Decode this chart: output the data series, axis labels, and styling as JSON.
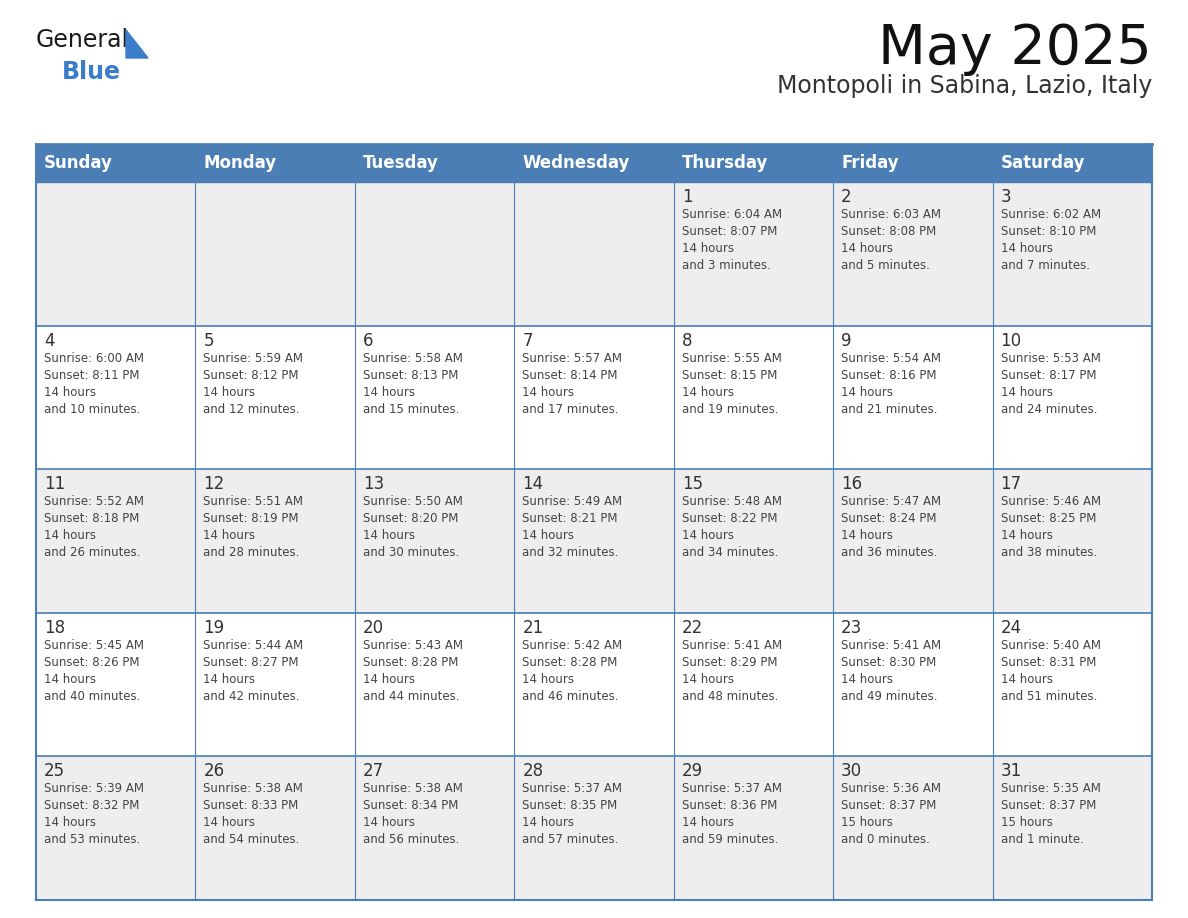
{
  "title": "May 2025",
  "subtitle": "Montopoli in Sabina, Lazio, Italy",
  "header_bg_color": "#4a7eb5",
  "header_text_color": "#ffffff",
  "day_names": [
    "Sunday",
    "Monday",
    "Tuesday",
    "Wednesday",
    "Thursday",
    "Friday",
    "Saturday"
  ],
  "row_bg_colors": [
    "#eeeeee",
    "#ffffff",
    "#eeeeee",
    "#ffffff",
    "#eeeeee"
  ],
  "cell_text_color": "#444444",
  "date_text_color": "#333333",
  "grid_line_color": "#4a7eb5",
  "logo_general_color": "#1a1a1a",
  "logo_blue_color": "#3a7dc9",
  "calendar": [
    [
      null,
      null,
      null,
      null,
      {
        "day": 1,
        "sunrise": "6:04 AM",
        "sunset": "8:07 PM",
        "daylight": "14 hours\nand 3 minutes."
      },
      {
        "day": 2,
        "sunrise": "6:03 AM",
        "sunset": "8:08 PM",
        "daylight": "14 hours\nand 5 minutes."
      },
      {
        "day": 3,
        "sunrise": "6:02 AM",
        "sunset": "8:10 PM",
        "daylight": "14 hours\nand 7 minutes."
      }
    ],
    [
      {
        "day": 4,
        "sunrise": "6:00 AM",
        "sunset": "8:11 PM",
        "daylight": "14 hours\nand 10 minutes."
      },
      {
        "day": 5,
        "sunrise": "5:59 AM",
        "sunset": "8:12 PM",
        "daylight": "14 hours\nand 12 minutes."
      },
      {
        "day": 6,
        "sunrise": "5:58 AM",
        "sunset": "8:13 PM",
        "daylight": "14 hours\nand 15 minutes."
      },
      {
        "day": 7,
        "sunrise": "5:57 AM",
        "sunset": "8:14 PM",
        "daylight": "14 hours\nand 17 minutes."
      },
      {
        "day": 8,
        "sunrise": "5:55 AM",
        "sunset": "8:15 PM",
        "daylight": "14 hours\nand 19 minutes."
      },
      {
        "day": 9,
        "sunrise": "5:54 AM",
        "sunset": "8:16 PM",
        "daylight": "14 hours\nand 21 minutes."
      },
      {
        "day": 10,
        "sunrise": "5:53 AM",
        "sunset": "8:17 PM",
        "daylight": "14 hours\nand 24 minutes."
      }
    ],
    [
      {
        "day": 11,
        "sunrise": "5:52 AM",
        "sunset": "8:18 PM",
        "daylight": "14 hours\nand 26 minutes."
      },
      {
        "day": 12,
        "sunrise": "5:51 AM",
        "sunset": "8:19 PM",
        "daylight": "14 hours\nand 28 minutes."
      },
      {
        "day": 13,
        "sunrise": "5:50 AM",
        "sunset": "8:20 PM",
        "daylight": "14 hours\nand 30 minutes."
      },
      {
        "day": 14,
        "sunrise": "5:49 AM",
        "sunset": "8:21 PM",
        "daylight": "14 hours\nand 32 minutes."
      },
      {
        "day": 15,
        "sunrise": "5:48 AM",
        "sunset": "8:22 PM",
        "daylight": "14 hours\nand 34 minutes."
      },
      {
        "day": 16,
        "sunrise": "5:47 AM",
        "sunset": "8:24 PM",
        "daylight": "14 hours\nand 36 minutes."
      },
      {
        "day": 17,
        "sunrise": "5:46 AM",
        "sunset": "8:25 PM",
        "daylight": "14 hours\nand 38 minutes."
      }
    ],
    [
      {
        "day": 18,
        "sunrise": "5:45 AM",
        "sunset": "8:26 PM",
        "daylight": "14 hours\nand 40 minutes."
      },
      {
        "day": 19,
        "sunrise": "5:44 AM",
        "sunset": "8:27 PM",
        "daylight": "14 hours\nand 42 minutes."
      },
      {
        "day": 20,
        "sunrise": "5:43 AM",
        "sunset": "8:28 PM",
        "daylight": "14 hours\nand 44 minutes."
      },
      {
        "day": 21,
        "sunrise": "5:42 AM",
        "sunset": "8:28 PM",
        "daylight": "14 hours\nand 46 minutes."
      },
      {
        "day": 22,
        "sunrise": "5:41 AM",
        "sunset": "8:29 PM",
        "daylight": "14 hours\nand 48 minutes."
      },
      {
        "day": 23,
        "sunrise": "5:41 AM",
        "sunset": "8:30 PM",
        "daylight": "14 hours\nand 49 minutes."
      },
      {
        "day": 24,
        "sunrise": "5:40 AM",
        "sunset": "8:31 PM",
        "daylight": "14 hours\nand 51 minutes."
      }
    ],
    [
      {
        "day": 25,
        "sunrise": "5:39 AM",
        "sunset": "8:32 PM",
        "daylight": "14 hours\nand 53 minutes."
      },
      {
        "day": 26,
        "sunrise": "5:38 AM",
        "sunset": "8:33 PM",
        "daylight": "14 hours\nand 54 minutes."
      },
      {
        "day": 27,
        "sunrise": "5:38 AM",
        "sunset": "8:34 PM",
        "daylight": "14 hours\nand 56 minutes."
      },
      {
        "day": 28,
        "sunrise": "5:37 AM",
        "sunset": "8:35 PM",
        "daylight": "14 hours\nand 57 minutes."
      },
      {
        "day": 29,
        "sunrise": "5:37 AM",
        "sunset": "8:36 PM",
        "daylight": "14 hours\nand 59 minutes."
      },
      {
        "day": 30,
        "sunrise": "5:36 AM",
        "sunset": "8:37 PM",
        "daylight": "15 hours\nand 0 minutes."
      },
      {
        "day": 31,
        "sunrise": "5:35 AM",
        "sunset": "8:37 PM",
        "daylight": "15 hours\nand 1 minute."
      }
    ]
  ]
}
